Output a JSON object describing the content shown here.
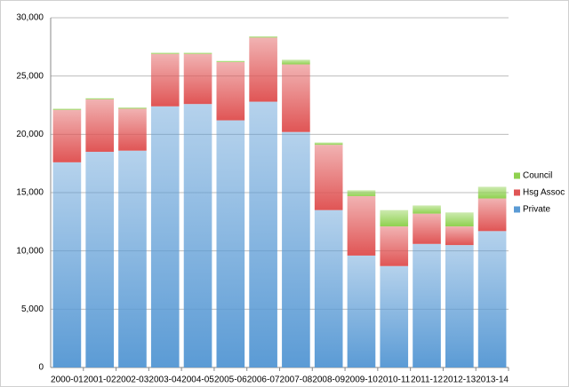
{
  "chart_data": {
    "type": "stacked-bar",
    "categories": [
      "2000-01",
      "2001-02",
      "2002-03",
      "2003-04",
      "2004-05",
      "2005-06",
      "2006-07",
      "2007-08",
      "2008-09",
      "2009-10",
      "2010-11",
      "2011-12",
      "2012-13",
      "2013-14"
    ],
    "series": [
      {
        "name": "Private",
        "color": "#5b9bd5",
        "values": [
          17600,
          18500,
          18600,
          22400,
          22600,
          21200,
          22800,
          20200,
          13500,
          9600,
          8700,
          10600,
          10500,
          11700
        ]
      },
      {
        "name": "Hsg Assoc",
        "color": "#e05555",
        "values": [
          4500,
          4500,
          3600,
          4500,
          4300,
          5000,
          5500,
          5800,
          5600,
          5100,
          3400,
          2600,
          1600,
          2800
        ]
      },
      {
        "name": "Council",
        "color": "#8fd14f",
        "values": [
          100,
          100,
          100,
          100,
          100,
          100,
          100,
          400,
          200,
          500,
          1400,
          700,
          1200,
          1000
        ]
      }
    ],
    "ylim": [
      0,
      30000
    ],
    "yticks": [
      0,
      {
        "value": 5000,
        "label": "5,000"
      },
      {
        "value": 10000,
        "label": "10,000"
      },
      {
        "value": 15000,
        "label": "15,000"
      },
      {
        "value": 20000,
        "label": "20,000"
      },
      {
        "value": 25000,
        "label": "25,000"
      },
      {
        "value": 30000,
        "label": "30,000"
      }
    ],
    "grid": true,
    "legend": "right"
  }
}
